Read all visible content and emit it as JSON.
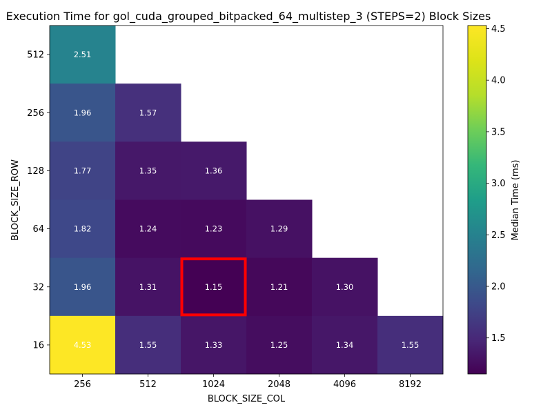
{
  "chart_data": {
    "type": "heatmap",
    "title": "Execution Time for gol_cuda_grouped_bitpacked_64_multistep_3 (STEPS=2) Block Sizes",
    "xlabel": "BLOCK_SIZE_COL",
    "ylabel": "BLOCK_SIZE_ROW",
    "x_categories": [
      "256",
      "512",
      "1024",
      "2048",
      "4096",
      "8192"
    ],
    "y_categories": [
      "512",
      "256",
      "128",
      "64",
      "32",
      "16"
    ],
    "values": [
      [
        2.51,
        null,
        null,
        null,
        null,
        null
      ],
      [
        1.96,
        1.57,
        null,
        null,
        null,
        null
      ],
      [
        1.77,
        1.35,
        1.36,
        null,
        null,
        null
      ],
      [
        1.82,
        1.24,
        1.23,
        1.29,
        null,
        null
      ],
      [
        1.96,
        1.31,
        1.15,
        1.21,
        1.3,
        null
      ],
      [
        4.53,
        1.55,
        1.33,
        1.25,
        1.34,
        1.55
      ]
    ],
    "value_labels": [
      [
        "2.51",
        "",
        "",
        "",
        "",
        ""
      ],
      [
        "1.96",
        "1.57",
        "",
        "",
        "",
        ""
      ],
      [
        "1.77",
        "1.35",
        "1.36",
        "",
        "",
        ""
      ],
      [
        "1.82",
        "1.24",
        "1.23",
        "1.29",
        "",
        ""
      ],
      [
        "1.96",
        "1.31",
        "1.15",
        "1.21",
        "1.30",
        ""
      ],
      [
        "4.53",
        "1.55",
        "1.33",
        "1.25",
        "1.34",
        "1.55"
      ]
    ],
    "highlight": {
      "row": "32",
      "col": "1024",
      "color": "#ff0000"
    },
    "colorbar": {
      "label": "Median Time (ms)",
      "min": 1.15,
      "max": 4.53,
      "ticks": [
        "1.5",
        "2.0",
        "2.5",
        "3.0",
        "3.5",
        "4.0",
        "4.5"
      ],
      "colormap": "viridis"
    },
    "grid": false
  }
}
